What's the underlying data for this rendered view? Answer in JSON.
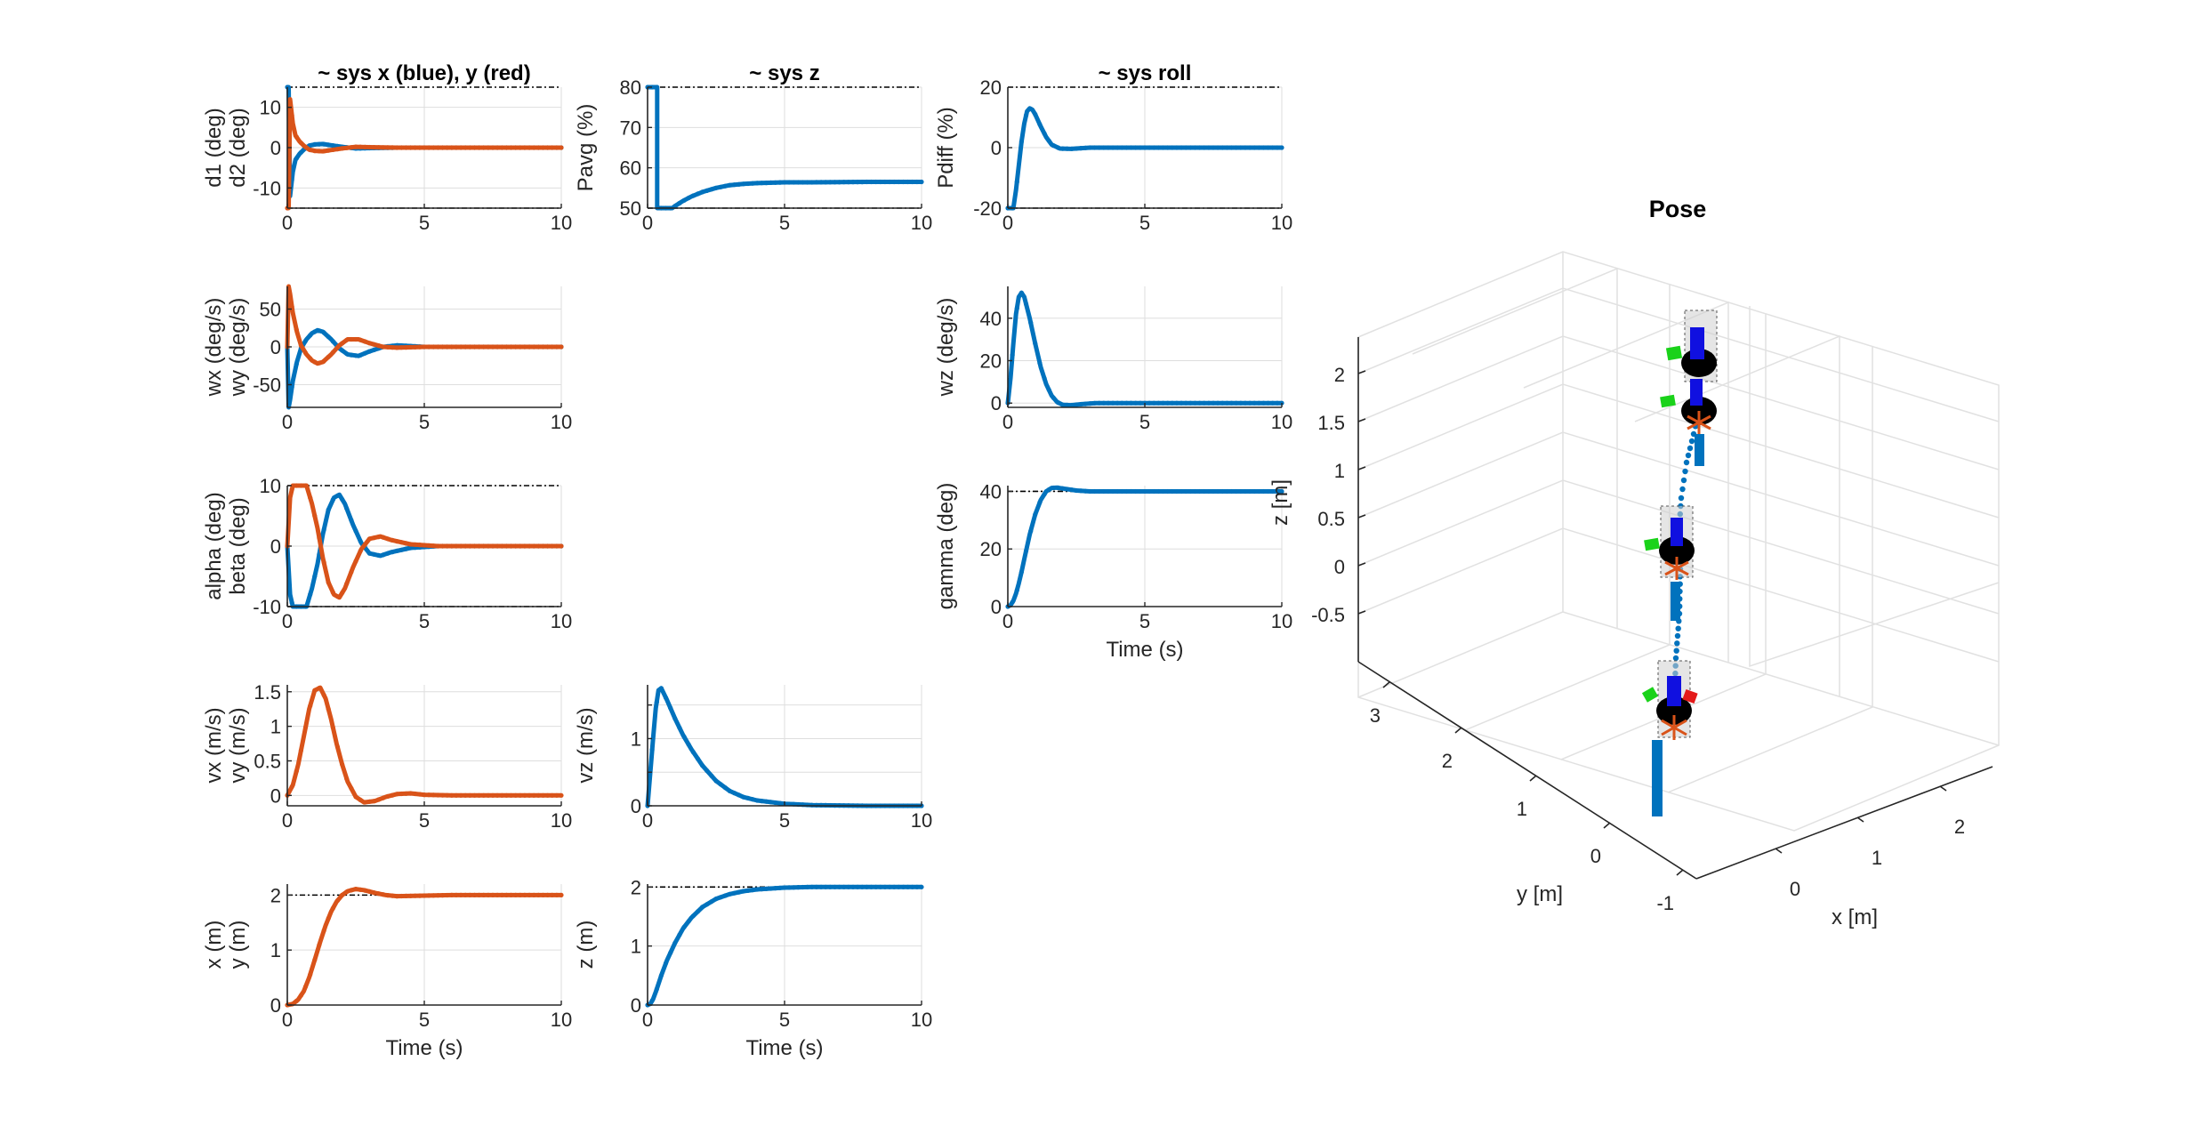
{
  "colors": {
    "blue": "#0072BD",
    "red": "#D95319",
    "grid": "#dedede",
    "axis": "#262626",
    "limit": "#000000"
  },
  "chart_data": [
    {
      "id": "p-d",
      "type": "line",
      "title": "~ sys x (blue), y (red)",
      "ylabels": [
        "d1 (deg)",
        "d2 (deg)"
      ],
      "xlabel": "",
      "xlim": [
        0,
        10
      ],
      "ylim": [
        -15,
        15
      ],
      "xticks": [
        0,
        5,
        10
      ],
      "yticks": [
        -10,
        0,
        10
      ],
      "limits": [
        15,
        -15
      ],
      "series": [
        {
          "color": "blue",
          "x": [
            0,
            0.05,
            0.1,
            0.2,
            0.3,
            0.45,
            0.6,
            0.8,
            1.0,
            1.3,
            1.6,
            2.0,
            2.5,
            3.0,
            4.0,
            5.0,
            7.0,
            10.0
          ],
          "y": [
            15,
            15,
            -12,
            -6,
            -3,
            -1.5,
            -0.5,
            0.5,
            0.8,
            0.9,
            0.6,
            0.2,
            -0.2,
            -0.1,
            0,
            0,
            0,
            0
          ]
        },
        {
          "color": "red",
          "x": [
            0,
            0.05,
            0.1,
            0.2,
            0.3,
            0.45,
            0.6,
            0.8,
            1.0,
            1.3,
            1.6,
            2.0,
            2.5,
            3.0,
            4.0,
            5.0,
            7.0,
            10.0
          ],
          "y": [
            -15,
            -15,
            12,
            6,
            3,
            1.5,
            0.5,
            -0.5,
            -0.8,
            -0.9,
            -0.6,
            -0.2,
            0.2,
            0.1,
            0,
            0,
            0,
            0
          ]
        }
      ]
    },
    {
      "id": "p-z",
      "type": "line",
      "title": "~ sys z",
      "ylabels": [
        "Pavg (%)"
      ],
      "xlabel": "",
      "xlim": [
        0,
        10
      ],
      "ylim": [
        50,
        80
      ],
      "xticks": [
        0,
        5,
        10
      ],
      "yticks": [
        50,
        60,
        70,
        80
      ],
      "limits": [
        80,
        50
      ],
      "series": [
        {
          "color": "blue",
          "x": [
            0,
            0.3,
            0.35,
            0.35,
            0.9,
            1.0,
            1.3,
            1.6,
            2.0,
            2.5,
            3.0,
            3.5,
            4.0,
            5.0,
            6.0,
            8.0,
            10.0
          ],
          "y": [
            80,
            80,
            80,
            50,
            50,
            50.5,
            51.8,
            52.9,
            54.0,
            55.0,
            55.7,
            56.0,
            56.2,
            56.4,
            56.4,
            56.5,
            56.5
          ]
        }
      ]
    },
    {
      "id": "p-roll",
      "type": "line",
      "title": "~ sys roll",
      "ylabels": [
        "Pdiff (%)"
      ],
      "xlabel": "",
      "xlim": [
        0,
        10
      ],
      "ylim": [
        -20,
        20
      ],
      "xticks": [
        0,
        5,
        10
      ],
      "yticks": [
        -20,
        0,
        20
      ],
      "limits": [
        20,
        -20
      ],
      "series": [
        {
          "color": "blue",
          "x": [
            0,
            0.2,
            0.3,
            0.4,
            0.5,
            0.6,
            0.7,
            0.8,
            0.9,
            1.0,
            1.2,
            1.4,
            1.6,
            1.9,
            2.3,
            3.0,
            4.0,
            6.0,
            10.0
          ],
          "y": [
            -20,
            -20,
            -14,
            -6,
            2,
            8,
            12,
            13,
            12.5,
            11,
            7,
            3.5,
            1,
            -0.3,
            -0.4,
            0,
            0,
            0,
            0
          ]
        }
      ]
    },
    {
      "id": "p-w",
      "type": "line",
      "title": "",
      "ylabels": [
        "wx (deg/s)",
        "wy (deg/s)"
      ],
      "xlabel": "",
      "xlim": [
        0,
        10
      ],
      "ylim": [
        -80,
        80
      ],
      "xticks": [
        0,
        5,
        10
      ],
      "yticks": [
        -50,
        0,
        50
      ],
      "limits": [],
      "series": [
        {
          "color": "blue",
          "x": [
            0,
            0.05,
            0.1,
            0.2,
            0.35,
            0.5,
            0.7,
            0.9,
            1.1,
            1.3,
            1.6,
            1.9,
            2.2,
            2.6,
            3.0,
            3.5,
            4.0,
            5.0,
            10.0
          ],
          "y": [
            0,
            -80,
            -70,
            -45,
            -20,
            -2,
            10,
            18,
            22,
            20,
            10,
            -2,
            -10,
            -12,
            -6,
            0,
            2,
            0,
            0
          ]
        },
        {
          "color": "red",
          "x": [
            0,
            0.05,
            0.1,
            0.2,
            0.35,
            0.5,
            0.7,
            0.9,
            1.1,
            1.3,
            1.6,
            1.9,
            2.2,
            2.6,
            3.0,
            3.5,
            4.0,
            5.0,
            10.0
          ],
          "y": [
            0,
            80,
            70,
            45,
            20,
            2,
            -10,
            -18,
            -22,
            -20,
            -10,
            2,
            10,
            10,
            5,
            0,
            -1,
            0,
            0
          ]
        }
      ]
    },
    {
      "id": "p-wz",
      "type": "line",
      "title": "",
      "ylabels": [
        "wz (deg/s)"
      ],
      "xlabel": "",
      "xlim": [
        0,
        10
      ],
      "ylim": [
        -2,
        55
      ],
      "xticks": [
        0,
        5,
        10
      ],
      "yticks": [
        0,
        20,
        40
      ],
      "limits": [],
      "series": [
        {
          "color": "blue",
          "x": [
            0,
            0.1,
            0.2,
            0.3,
            0.4,
            0.5,
            0.6,
            0.8,
            1.0,
            1.2,
            1.4,
            1.6,
            1.8,
            2.0,
            2.3,
            2.7,
            3.2,
            4.0,
            6.0,
            10.0
          ],
          "y": [
            0,
            12,
            28,
            42,
            50,
            52,
            50,
            40,
            28,
            17,
            9,
            3.5,
            0.5,
            -0.8,
            -1.0,
            -0.5,
            0,
            0,
            0,
            0
          ]
        }
      ]
    },
    {
      "id": "p-ab",
      "type": "line",
      "title": "",
      "ylabels": [
        "alpha (deg)",
        "beta (deg)"
      ],
      "xlabel": "",
      "xlim": [
        0,
        10
      ],
      "ylim": [
        -10,
        10
      ],
      "xticks": [
        0,
        5,
        10
      ],
      "yticks": [
        -10,
        0,
        10
      ],
      "limits": [
        10,
        -10
      ],
      "series": [
        {
          "color": "blue",
          "x": [
            0,
            0.1,
            0.2,
            0.7,
            0.9,
            1.1,
            1.3,
            1.5,
            1.7,
            1.9,
            2.1,
            2.4,
            2.7,
            3.0,
            3.4,
            3.8,
            4.5,
            5.5,
            10.0
          ],
          "y": [
            0,
            -8,
            -10,
            -10,
            -7,
            -3,
            2,
            6,
            8,
            8.5,
            7,
            3.5,
            0.5,
            -1.2,
            -1.6,
            -1.0,
            -0.3,
            0,
            0
          ]
        },
        {
          "color": "red",
          "x": [
            0,
            0.1,
            0.2,
            0.7,
            0.9,
            1.1,
            1.3,
            1.5,
            1.7,
            1.9,
            2.1,
            2.4,
            2.7,
            3.0,
            3.4,
            3.8,
            4.5,
            5.5,
            10.0
          ],
          "y": [
            0,
            8,
            10,
            10,
            7,
            3,
            -2,
            -6,
            -8,
            -8.5,
            -7,
            -3.5,
            -0.5,
            1.2,
            1.6,
            1.0,
            0.3,
            0,
            0
          ]
        }
      ]
    },
    {
      "id": "p-gamma",
      "type": "line",
      "title": "",
      "ylabels": [
        "gamma (deg)"
      ],
      "xlabel": "Time (s)",
      "xlim": [
        0,
        10
      ],
      "ylim": [
        0,
        42
      ],
      "xticks": [
        0,
        5,
        10
      ],
      "yticks": [
        0,
        20,
        40
      ],
      "limits": [
        40
      ],
      "series": [
        {
          "color": "blue",
          "x": [
            0,
            0.1,
            0.2,
            0.3,
            0.4,
            0.5,
            0.6,
            0.8,
            1.0,
            1.2,
            1.4,
            1.6,
            1.8,
            2.0,
            2.5,
            3.0,
            4.0,
            6.0,
            10.0
          ],
          "y": [
            0,
            0.5,
            2,
            4.5,
            8,
            12,
            16.5,
            25,
            32,
            37,
            40,
            41.2,
            41.3,
            41.0,
            40.3,
            40.0,
            40,
            40,
            40
          ]
        }
      ]
    },
    {
      "id": "p-v",
      "type": "line",
      "title": "",
      "ylabels": [
        "vx (m/s)",
        "vy (m/s)"
      ],
      "xlabel": "",
      "xlim": [
        0,
        10
      ],
      "ylim": [
        -0.15,
        1.6
      ],
      "xticks": [
        0,
        5,
        10
      ],
      "yticks": [
        0,
        0.5,
        1,
        1.5
      ],
      "ytickLabels": [
        "0",
        "0.5",
        "1",
        "1.5"
      ],
      "limits": [],
      "series": [
        {
          "color": "red",
          "x": [
            0,
            0.2,
            0.4,
            0.6,
            0.8,
            1.0,
            1.2,
            1.4,
            1.6,
            1.8,
            2.0,
            2.2,
            2.5,
            2.8,
            3.2,
            3.6,
            4.0,
            4.5,
            5.0,
            6.0,
            10.0
          ],
          "y": [
            0,
            0.15,
            0.45,
            0.85,
            1.25,
            1.52,
            1.56,
            1.4,
            1.1,
            0.75,
            0.45,
            0.2,
            -0.02,
            -0.1,
            -0.08,
            -0.02,
            0.02,
            0.03,
            0.01,
            0,
            0
          ]
        }
      ]
    },
    {
      "id": "p-vz",
      "type": "line",
      "title": "",
      "ylabels": [
        "vz (m/s)"
      ],
      "xlabel": "",
      "xlim": [
        0,
        10
      ],
      "ylim": [
        0,
        1.8
      ],
      "xticks": [
        0,
        5,
        10
      ],
      "yticks": [
        0,
        0.5,
        1,
        1.5
      ],
      "ytickLabels": [
        "0",
        "",
        "1",
        ""
      ],
      "limits": [],
      "series": [
        {
          "color": "blue",
          "x": [
            0,
            0.1,
            0.2,
            0.3,
            0.4,
            0.5,
            0.7,
            1.0,
            1.3,
            1.6,
            2.0,
            2.5,
            3.0,
            3.5,
            4.0,
            5.0,
            6.0,
            8.0,
            10.0
          ],
          "y": [
            0,
            0.5,
            1.0,
            1.45,
            1.72,
            1.75,
            1.58,
            1.3,
            1.05,
            0.84,
            0.6,
            0.37,
            0.22,
            0.13,
            0.08,
            0.03,
            0.01,
            0,
            0
          ]
        }
      ]
    },
    {
      "id": "p-xy",
      "type": "line",
      "title": "",
      "ylabels": [
        "x (m)",
        "y (m)"
      ],
      "xlabel": "Time (s)",
      "xlim": [
        0,
        10
      ],
      "ylim": [
        0,
        2.2
      ],
      "xticks": [
        0,
        5,
        10
      ],
      "yticks": [
        0,
        1,
        2
      ],
      "limits": [
        2
      ],
      "series": [
        {
          "color": "red",
          "x": [
            0,
            0.2,
            0.4,
            0.6,
            0.8,
            1.0,
            1.2,
            1.4,
            1.6,
            1.8,
            2.0,
            2.2,
            2.5,
            2.8,
            3.2,
            3.6,
            4.0,
            5.0,
            6.0,
            10.0
          ],
          "y": [
            0,
            0.02,
            0.1,
            0.25,
            0.5,
            0.82,
            1.15,
            1.45,
            1.7,
            1.88,
            2.0,
            2.07,
            2.11,
            2.09,
            2.04,
            2.0,
            1.98,
            1.99,
            2.0,
            2.0
          ]
        }
      ]
    },
    {
      "id": "p-zpos",
      "type": "line",
      "title": "",
      "ylabels": [
        "z (m)"
      ],
      "xlabel": "Time (s)",
      "xlim": [
        0,
        10
      ],
      "ylim": [
        0,
        2.05
      ],
      "xticks": [
        0,
        5,
        10
      ],
      "yticks": [
        0,
        1,
        2
      ],
      "limits": [
        2
      ],
      "series": [
        {
          "color": "blue",
          "x": [
            0,
            0.1,
            0.2,
            0.3,
            0.5,
            0.7,
            1.0,
            1.3,
            1.6,
            2.0,
            2.5,
            3.0,
            3.5,
            4.0,
            5.0,
            6.0,
            8.0,
            10.0
          ],
          "y": [
            0,
            0.02,
            0.1,
            0.22,
            0.5,
            0.75,
            1.05,
            1.3,
            1.48,
            1.66,
            1.8,
            1.88,
            1.93,
            1.96,
            1.99,
            2.0,
            2.0,
            2.0
          ]
        }
      ]
    },
    {
      "id": "pose",
      "type": "scatter",
      "title": "Pose",
      "xlabel": "x [m]",
      "ylabel": "y [m]",
      "zlabel": "z [m]",
      "xticks": [
        "0",
        "1",
        "2"
      ],
      "yticks": [
        "-1",
        "0",
        "1",
        "2",
        "3"
      ],
      "zticks": [
        "2",
        "1.5",
        "1",
        "0.5",
        "0",
        "-0.5"
      ]
    }
  ]
}
